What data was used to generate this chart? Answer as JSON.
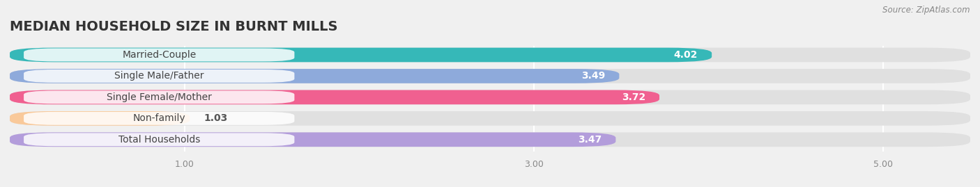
{
  "title": "MEDIAN HOUSEHOLD SIZE IN BURNT MILLS",
  "source": "Source: ZipAtlas.com",
  "categories": [
    "Married-Couple",
    "Single Male/Father",
    "Single Female/Mother",
    "Non-family",
    "Total Households"
  ],
  "values": [
    4.02,
    3.49,
    3.72,
    1.03,
    3.47
  ],
  "bar_colors": [
    "#36b8b8",
    "#8eaadb",
    "#f06090",
    "#f9c99a",
    "#b39ddb"
  ],
  "xlim": [
    0.0,
    5.5
  ],
  "xdata_min": 0.0,
  "xticks": [
    1.0,
    3.0,
    5.0
  ],
  "xtick_labels": [
    "1.00",
    "3.00",
    "5.00"
  ],
  "background_color": "#f0f0f0",
  "bar_bg_color": "#e0e0e0",
  "title_fontsize": 14,
  "label_fontsize": 10,
  "value_fontsize": 10
}
